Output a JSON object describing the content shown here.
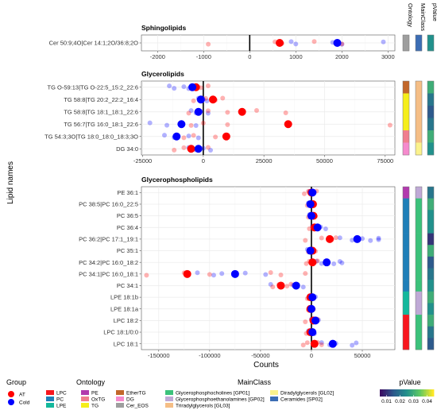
{
  "chart_data": {
    "type": "scatter",
    "xlabel": "Counts",
    "ylabel": "Lipid names",
    "strip_labels": [
      "Ontology",
      "MainClass",
      "pValue"
    ],
    "groups": [
      {
        "name": "AT",
        "color": "#FF0000"
      },
      {
        "name": "Cold",
        "color": "#0000FF"
      }
    ],
    "panels": [
      {
        "title": "Sphingolipids",
        "xlim": [
          -2350,
          3150
        ],
        "xticks": [
          -2000,
          -1000,
          0,
          1000,
          2000,
          3000
        ],
        "xtick_labels": [
          "-2000",
          "-1000",
          "0",
          "1000",
          "2000",
          "3000"
        ],
        "rows": [
          {
            "lipid": "Cer 50:9;4O|Cer 14:1;2O/36:8;2O",
            "ontology": "Cer_EOS",
            "mainclass": "Ceramides [SP02]",
            "pvalue": 0.025,
            "at_mean": 650,
            "cold_mean": 1900,
            "at_points": [
              -900,
              550,
              700,
              1400,
              2000
            ],
            "cold_points": [
              900,
              1000,
              1800,
              2000,
              2900
            ]
          }
        ]
      },
      {
        "title": "Glycerolipids",
        "xlim": [
          -25500,
          79000
        ],
        "xticks": [
          -25000,
          0,
          25000,
          50000,
          75000
        ],
        "xtick_labels": [
          "-25000",
          "0",
          "25000",
          "50000",
          "75000"
        ],
        "rows": [
          {
            "lipid": "TG O-59:13|TG O-22:5_15:2_22:6",
            "ontology": "EtherTG",
            "mainclass": "Triradylglycerols [GL03]",
            "pvalue": 0.03,
            "at_mean": -3000,
            "cold_mean": -4500,
            "at_points": [
              -5000,
              -3000,
              -1000,
              2000
            ],
            "cold_points": [
              -14000,
              -12000,
              -8000,
              -6000,
              -4000
            ]
          },
          {
            "lipid": "TG 58:8|TG 20:2_22:2_16:4",
            "ontology": "TG",
            "mainclass": "Triradylglycerols [GL03]",
            "pvalue": 0.02,
            "at_mean": 4000,
            "cold_mean": -1000,
            "at_points": [
              -4000,
              1000,
              5000,
              8000
            ],
            "cold_points": [
              -2000,
              -1000,
              0,
              1500
            ]
          },
          {
            "lipid": "TG 58:8|TG 18:1_18:1_22:6",
            "ontology": "TG",
            "mainclass": "Triradylglycerols [GL03]",
            "pvalue": 0.015,
            "at_mean": 16000,
            "cold_mean": -2000,
            "at_points": [
              -6000,
              2000,
              10000,
              22000,
              34000
            ],
            "cold_points": [
              -5000,
              -3000,
              -1000,
              2000
            ]
          },
          {
            "lipid": "TG 56:7|TG 16:0_18:1_22:6",
            "ontology": "TG",
            "mainclass": "Triradylglycerols [GL03]",
            "pvalue": 0.02,
            "at_mean": 35000,
            "cold_mean": -9000,
            "at_points": [
              -5000,
              0,
              10000,
              35000,
              77000
            ],
            "cold_points": [
              -22000,
              -15000,
              -9000,
              -3000
            ]
          },
          {
            "lipid": "TG 54:3;3O|TG 18:0_18:0_18:3;3O",
            "ontology": "OxTG",
            "mainclass": "Triradylglycerols [GL03]",
            "pvalue": 0.03,
            "at_mean": 9500,
            "cold_mean": -11000,
            "at_points": [
              -8000,
              -4000,
              5000,
              10000
            ],
            "cold_points": [
              -16000,
              -12000,
              -6000,
              -2000
            ]
          },
          {
            "lipid": "DG 34:0",
            "ontology": "DG",
            "mainclass": "Diradylglycerols [GL02]",
            "pvalue": 0.025,
            "at_mean": -5000,
            "cold_mean": -2000,
            "at_points": [
              -12000,
              -8000,
              -4000,
              2000
            ],
            "cold_points": [
              -6000,
              -3000,
              0,
              3000
            ]
          }
        ]
      },
      {
        "title": "Glycerophospholipids",
        "xlim": [
          -167000,
          82000
        ],
        "xticks": [
          -150000,
          -100000,
          -50000,
          0,
          50000
        ],
        "xtick_labels": [
          "-150000",
          "-100000",
          "-50000",
          "0",
          "50000"
        ],
        "rows": [
          {
            "lipid": "PE 36:1",
            "ontology": "PE",
            "mainclass": "Glycerophosphoethanolamines [GP02]",
            "pvalue": 0.02,
            "at_mean": 0,
            "cold_mean": 1000,
            "at_points": [
              -7000,
              -3000,
              2000,
              5000
            ],
            "cold_points": [
              -2000,
              1000,
              3000
            ]
          },
          {
            "lipid": "PC 38:5|PC 16:0_22:5",
            "ontology": "PC",
            "mainclass": "Glycerophosphocholines [GP01]",
            "pvalue": 0.03,
            "at_mean": 1500,
            "cold_mean": -1000,
            "at_points": [
              -4000,
              0,
              3000
            ],
            "cold_points": [
              -3000,
              0,
              2000
            ]
          },
          {
            "lipid": "PC 36:5",
            "ontology": "PC",
            "mainclass": "Glycerophosphocholines [GP01]",
            "pvalue": 0.025,
            "at_mean": 2000,
            "cold_mean": 0,
            "at_points": [
              -3000,
              1000,
              4000
            ],
            "cold_points": [
              -2000,
              1000,
              3000
            ]
          },
          {
            "lipid": "PC 36:4",
            "ontology": "PC",
            "mainclass": "Glycerophosphocholines [GP01]",
            "pvalue": 0.025,
            "at_mean": 3000,
            "cold_mean": 6000,
            "at_points": [
              -2000,
              2000,
              5000
            ],
            "cold_points": [
              1000,
              5000,
              9000,
              14000
            ]
          },
          {
            "lipid": "PC 36:2|PC 17:1_19:1",
            "ontology": "PC",
            "mainclass": "Glycerophosphocholines [GP01]",
            "pvalue": 0.01,
            "at_mean": 18000,
            "cold_mean": 45000,
            "at_points": [
              -6000,
              10000,
              20000,
              24000
            ],
            "cold_points": [
              28000,
              40000,
              50000,
              58000,
              66000,
              66000
            ]
          },
          {
            "lipid": "PC 35:1",
            "ontology": "PC",
            "mainclass": "Glycerophosphocholines [GP01]",
            "pvalue": 0.03,
            "at_mean": 1000,
            "cold_mean": -1000,
            "at_points": [
              -3000,
              1000,
              4000
            ],
            "cold_points": [
              -4000,
              -1000,
              2000
            ]
          },
          {
            "lipid": "PC 34:2|PC 16:0_18:2",
            "ontology": "PC",
            "mainclass": "Glycerophosphocholines [GP01]",
            "pvalue": 0.015,
            "at_mean": 1000,
            "cold_mean": 15000,
            "at_points": [
              -5000,
              -2000,
              3000,
              6000
            ],
            "cold_points": [
              5000,
              10000,
              15000,
              22000,
              28000,
              30000
            ]
          },
          {
            "lipid": "PC 34:1|PC 16:0_18:1",
            "ontology": "PC",
            "mainclass": "Glycerophosphocholines [GP01]",
            "pvalue": 0.02,
            "at_mean": -122000,
            "cold_mean": -75000,
            "at_points": [
              -162000,
              -125000,
              -100000,
              -40000,
              -30000,
              -6000
            ],
            "cold_points": [
              -112000,
              -96000,
              -88000,
              -75000,
              -65000,
              -45000
            ]
          },
          {
            "lipid": "PC 34:1",
            "ontology": "PC",
            "mainclass": "Glycerophosphocholines [GP01]",
            "pvalue": 0.025,
            "at_mean": -30000,
            "cold_mean": -15000,
            "at_points": [
              -38000,
              -32000,
              -24000,
              -20000
            ],
            "cold_points": [
              -40000,
              -30000,
              -18000,
              -8000
            ]
          },
          {
            "lipid": "LPE 18:1b",
            "ontology": "LPE",
            "mainclass": "Glycerophosphoethanolamines [GP02]",
            "pvalue": 0.03,
            "at_mean": -1000,
            "cold_mean": 1000,
            "at_points": [
              -4000,
              0,
              2000
            ],
            "cold_points": [
              -2000,
              1000,
              4000
            ]
          },
          {
            "lipid": "LPE 18:1a",
            "ontology": "LPE",
            "mainclass": "Glycerophosphoethanolamines [GP02]",
            "pvalue": 0.025,
            "at_mean": -1000,
            "cold_mean": 0,
            "at_points": [
              -3000,
              0,
              2000
            ],
            "cold_points": [
              -2000,
              1000
            ]
          },
          {
            "lipid": "LPC 18:2",
            "ontology": "LPC",
            "mainclass": "Glycerophosphocholines [GP01]",
            "pvalue": 0.03,
            "at_mean": 2000,
            "cold_mean": 4000,
            "at_points": [
              -6000,
              0,
              3000,
              6000
            ],
            "cold_points": [
              0,
              4000,
              7000
            ]
          },
          {
            "lipid": "LPC 18:1/0:0",
            "ontology": "LPC",
            "mainclass": "Glycerophosphocholines [GP01]",
            "pvalue": 0.02,
            "at_mean": -1000,
            "cold_mean": 1000,
            "at_points": [
              -5000,
              -2000,
              2000
            ],
            "cold_points": [
              -3000,
              0,
              2000,
              3000
            ]
          },
          {
            "lipid": "LPC 18:1",
            "ontology": "LPC",
            "mainclass": "Glycerophosphocholines [GP01]",
            "pvalue": 0.015,
            "at_mean": 3000,
            "cold_mean": 21000,
            "at_points": [
              -8000,
              -4000,
              2000,
              6000,
              10000
            ],
            "cold_points": [
              10000,
              18000,
              24000,
              40000,
              44000
            ]
          }
        ]
      }
    ],
    "legend": {
      "group_title": "Group",
      "ontology_title": "Ontology",
      "mainclass_title": "MainClass",
      "pvalue_title": "pValue",
      "ontology": [
        {
          "name": "LPC",
          "color": "#F8161E"
        },
        {
          "name": "PC",
          "color": "#1F7FB8"
        },
        {
          "name": "LPE",
          "color": "#14B89C"
        },
        {
          "name": "PE",
          "color": "#B23AAE"
        },
        {
          "name": "OxTG",
          "color": "#F07E8E"
        },
        {
          "name": "TG",
          "color": "#F5EE1A"
        },
        {
          "name": "EtherTG",
          "color": "#C2672A"
        },
        {
          "name": "DG",
          "color": "#F58ACD"
        },
        {
          "name": "Cer_EOS",
          "color": "#9E9E9E"
        }
      ],
      "mainclass": [
        {
          "name": "Glycerophosphocholines [GP01]",
          "color": "#3CC27B"
        },
        {
          "name": "Glycerophosphoethanolamines [GP02]",
          "color": "#BFA9D6"
        },
        {
          "name": "Triradylglycerols [GL03]",
          "color": "#F5BE86"
        },
        {
          "name": "Diradylglycerols [GL02]",
          "color": "#FBF28C"
        },
        {
          "name": "Ceramides [SP02]",
          "color": "#3C6DB4"
        }
      ],
      "pvalue_ticks": [
        0.01,
        0.02,
        0.03,
        0.04
      ],
      "pvalue_tick_labels": [
        "0.01",
        "0.02",
        "0.03",
        "0.04"
      ],
      "pvalue_range": [
        0.005,
        0.045
      ]
    }
  }
}
